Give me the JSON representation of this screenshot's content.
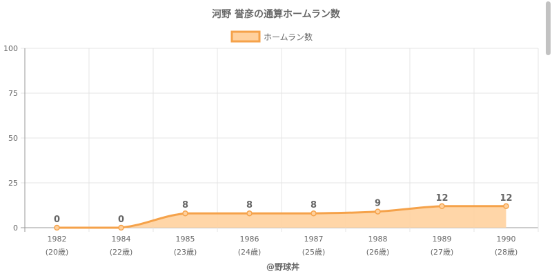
{
  "colors": {
    "line": "#f5a24a",
    "fill": "#ffd19e",
    "fill_opacity": 0.9,
    "point": "#f5a24a",
    "grid": "#e4e4e4",
    "axis": "#999999",
    "text": "#666666",
    "label": "#666666"
  },
  "footer": {
    "credit": "@野球丼"
  },
  "chart_data": {
    "type": "area",
    "title": "河野 誉彦の通算ホームラン数",
    "legend": {
      "position": "top-center"
    },
    "x": [
      "1982",
      "1984",
      "1985",
      "1986",
      "1987",
      "1988",
      "1989",
      "1990"
    ],
    "x_sub": [
      "(20歳)",
      "(22歳)",
      "(23歳)",
      "(24歳)",
      "(25歳)",
      "(26歳)",
      "(27歳)",
      "(28歳)"
    ],
    "series": [
      {
        "name": "ホームラン数",
        "values": [
          0,
          0,
          8,
          8,
          8,
          9,
          12,
          12
        ]
      }
    ],
    "data_labels": [
      "0",
      "0",
      "8",
      "8",
      "8",
      "9",
      "12",
      "12"
    ],
    "ylim": [
      0,
      100
    ],
    "yticks": [
      0,
      25,
      50,
      75,
      100
    ],
    "grid": true,
    "smooth": true
  }
}
